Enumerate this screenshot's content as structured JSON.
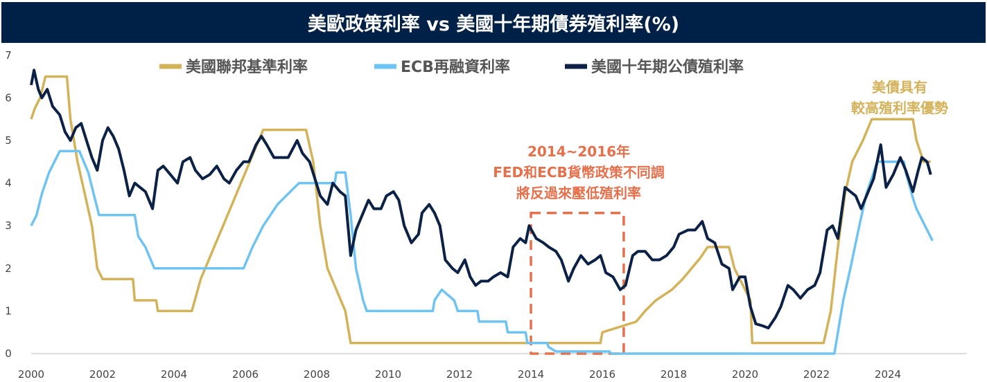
{
  "chart_data": {
    "type": "line",
    "title": "美歐政策利率 vs 美國十年期債券殖利率(%)",
    "xlabel": "",
    "ylabel": "",
    "xlim": [
      2000,
      2025.3
    ],
    "ylim": [
      0,
      7
    ],
    "yticks": [
      "0",
      "1",
      "2",
      "3",
      "4",
      "5",
      "6",
      "7"
    ],
    "xticks": [
      "2000",
      "2002",
      "2004",
      "2006",
      "2008",
      "2010",
      "2012",
      "2014",
      "2016",
      "2018",
      "2020",
      "2022",
      "2024"
    ],
    "grid": false,
    "legend_position": "top",
    "colors": {
      "fed": "#d4b25a",
      "ecb": "#6ec3f2",
      "ust": "#0b2146",
      "annotation": "#e4704c",
      "advantage": "#d4b25a",
      "title_bg": "#002147"
    },
    "series": [
      {
        "name": "美國聯邦基準利率",
        "key": "fed",
        "points": [
          [
            2000,
            5.5
          ],
          [
            2000.1,
            5.75
          ],
          [
            2000.25,
            6.0
          ],
          [
            2000.4,
            6.5
          ],
          [
            2001.0,
            6.5
          ],
          [
            2001.1,
            5.5
          ],
          [
            2001.3,
            4.5
          ],
          [
            2001.5,
            3.75
          ],
          [
            2001.7,
            3.0
          ],
          [
            2001.85,
            2.0
          ],
          [
            2002.0,
            1.75
          ],
          [
            2002.85,
            1.75
          ],
          [
            2002.9,
            1.25
          ],
          [
            2003.5,
            1.25
          ],
          [
            2003.55,
            1.0
          ],
          [
            2004.5,
            1.0
          ],
          [
            2004.75,
            1.75
          ],
          [
            2005.0,
            2.25
          ],
          [
            2005.5,
            3.25
          ],
          [
            2006.0,
            4.25
          ],
          [
            2006.5,
            5.25
          ],
          [
            2007.7,
            5.25
          ],
          [
            2007.9,
            4.5
          ],
          [
            2008.1,
            3.0
          ],
          [
            2008.3,
            2.0
          ],
          [
            2008.8,
            1.0
          ],
          [
            2008.95,
            0.25
          ],
          [
            2015.95,
            0.25
          ],
          [
            2016.0,
            0.5
          ],
          [
            2016.95,
            0.75
          ],
          [
            2017.2,
            1.0
          ],
          [
            2017.5,
            1.25
          ],
          [
            2017.95,
            1.5
          ],
          [
            2018.25,
            1.75
          ],
          [
            2018.5,
            2.0
          ],
          [
            2018.75,
            2.25
          ],
          [
            2018.95,
            2.5
          ],
          [
            2019.55,
            2.5
          ],
          [
            2019.7,
            2.0
          ],
          [
            2019.85,
            1.75
          ],
          [
            2020.15,
            1.25
          ],
          [
            2020.2,
            0.25
          ],
          [
            2022.2,
            0.25
          ],
          [
            2022.4,
            1.0
          ],
          [
            2022.6,
            2.5
          ],
          [
            2022.8,
            3.75
          ],
          [
            2023.0,
            4.5
          ],
          [
            2023.3,
            5.0
          ],
          [
            2023.55,
            5.5
          ],
          [
            2024.7,
            5.5
          ],
          [
            2024.8,
            5.0
          ],
          [
            2024.9,
            4.75
          ],
          [
            2025.0,
            4.5
          ],
          [
            2025.2,
            4.5
          ]
        ]
      },
      {
        "name": "ECB再融資利率",
        "key": "ecb",
        "points": [
          [
            2000,
            3.0
          ],
          [
            2000.15,
            3.25
          ],
          [
            2000.3,
            3.75
          ],
          [
            2000.5,
            4.25
          ],
          [
            2000.8,
            4.75
          ],
          [
            2001.35,
            4.75
          ],
          [
            2001.6,
            4.25
          ],
          [
            2001.75,
            3.75
          ],
          [
            2001.9,
            3.25
          ],
          [
            2002.9,
            3.25
          ],
          [
            2003.0,
            2.75
          ],
          [
            2003.2,
            2.5
          ],
          [
            2003.45,
            2.0
          ],
          [
            2005.95,
            2.0
          ],
          [
            2006.2,
            2.5
          ],
          [
            2006.5,
            3.0
          ],
          [
            2006.9,
            3.5
          ],
          [
            2007.2,
            3.75
          ],
          [
            2007.5,
            4.0
          ],
          [
            2008.5,
            4.0
          ],
          [
            2008.55,
            4.25
          ],
          [
            2008.8,
            4.25
          ],
          [
            2008.95,
            3.25
          ],
          [
            2009.1,
            2.0
          ],
          [
            2009.3,
            1.25
          ],
          [
            2009.4,
            1.0
          ],
          [
            2011.25,
            1.0
          ],
          [
            2011.3,
            1.25
          ],
          [
            2011.5,
            1.5
          ],
          [
            2011.85,
            1.25
          ],
          [
            2011.95,
            1.0
          ],
          [
            2012.5,
            1.0
          ],
          [
            2012.55,
            0.75
          ],
          [
            2013.3,
            0.75
          ],
          [
            2013.35,
            0.5
          ],
          [
            2013.85,
            0.5
          ],
          [
            2013.9,
            0.25
          ],
          [
            2014.45,
            0.25
          ],
          [
            2014.5,
            0.15
          ],
          [
            2014.7,
            0.05
          ],
          [
            2016.2,
            0.05
          ],
          [
            2016.25,
            0.0
          ],
          [
            2022.5,
            0.0
          ],
          [
            2022.6,
            0.5
          ],
          [
            2022.75,
            1.25
          ],
          [
            2022.95,
            2.0
          ],
          [
            2023.2,
            3.0
          ],
          [
            2023.4,
            3.75
          ],
          [
            2023.7,
            4.5
          ],
          [
            2024.45,
            4.5
          ],
          [
            2024.5,
            4.25
          ],
          [
            2024.7,
            3.65
          ],
          [
            2024.8,
            3.4
          ],
          [
            2024.95,
            3.15
          ],
          [
            2025.1,
            2.9
          ],
          [
            2025.25,
            2.65
          ]
        ]
      },
      {
        "name": "美國十年期公債殖利率",
        "key": "ust",
        "points": [
          [
            2000,
            6.3
          ],
          [
            2000.08,
            6.65
          ],
          [
            2000.2,
            6.2
          ],
          [
            2000.3,
            6.0
          ],
          [
            2000.45,
            6.2
          ],
          [
            2000.6,
            5.8
          ],
          [
            2000.8,
            5.6
          ],
          [
            2000.95,
            5.2
          ],
          [
            2001.1,
            5.0
          ],
          [
            2001.25,
            5.3
          ],
          [
            2001.4,
            5.4
          ],
          [
            2001.55,
            5.0
          ],
          [
            2001.7,
            4.6
          ],
          [
            2001.85,
            4.3
          ],
          [
            2002.0,
            5.0
          ],
          [
            2002.15,
            5.3
          ],
          [
            2002.3,
            5.1
          ],
          [
            2002.45,
            4.8
          ],
          [
            2002.6,
            4.3
          ],
          [
            2002.75,
            3.7
          ],
          [
            2002.9,
            4.0
          ],
          [
            2003.05,
            3.9
          ],
          [
            2003.2,
            3.8
          ],
          [
            2003.4,
            3.4
          ],
          [
            2003.55,
            4.3
          ],
          [
            2003.7,
            4.4
          ],
          [
            2003.9,
            4.2
          ],
          [
            2004.1,
            4.0
          ],
          [
            2004.25,
            4.5
          ],
          [
            2004.45,
            4.6
          ],
          [
            2004.6,
            4.3
          ],
          [
            2004.8,
            4.1
          ],
          [
            2005.0,
            4.2
          ],
          [
            2005.2,
            4.4
          ],
          [
            2005.4,
            4.1
          ],
          [
            2005.55,
            4.0
          ],
          [
            2005.75,
            4.3
          ],
          [
            2005.95,
            4.5
          ],
          [
            2006.1,
            4.5
          ],
          [
            2006.3,
            4.9
          ],
          [
            2006.45,
            5.1
          ],
          [
            2006.6,
            4.9
          ],
          [
            2006.8,
            4.6
          ],
          [
            2006.95,
            4.6
          ],
          [
            2007.2,
            4.6
          ],
          [
            2007.45,
            5.0
          ],
          [
            2007.6,
            4.7
          ],
          [
            2007.8,
            4.5
          ],
          [
            2007.95,
            4.1
          ],
          [
            2008.1,
            3.7
          ],
          [
            2008.3,
            3.5
          ],
          [
            2008.45,
            4.0
          ],
          [
            2008.65,
            3.8
          ],
          [
            2008.8,
            3.7
          ],
          [
            2008.95,
            2.3
          ],
          [
            2009.1,
            2.9
          ],
          [
            2009.3,
            3.3
          ],
          [
            2009.45,
            3.6
          ],
          [
            2009.6,
            3.4
          ],
          [
            2009.8,
            3.4
          ],
          [
            2009.95,
            3.7
          ],
          [
            2010.15,
            3.8
          ],
          [
            2010.3,
            3.6
          ],
          [
            2010.45,
            3.0
          ],
          [
            2010.65,
            2.6
          ],
          [
            2010.85,
            2.8
          ],
          [
            2010.95,
            3.3
          ],
          [
            2011.15,
            3.5
          ],
          [
            2011.3,
            3.3
          ],
          [
            2011.45,
            3.0
          ],
          [
            2011.6,
            2.2
          ],
          [
            2011.8,
            2.0
          ],
          [
            2011.95,
            1.9
          ],
          [
            2012.15,
            2.2
          ],
          [
            2012.3,
            1.8
          ],
          [
            2012.45,
            1.6
          ],
          [
            2012.6,
            1.7
          ],
          [
            2012.8,
            1.7
          ],
          [
            2012.95,
            1.8
          ],
          [
            2013.15,
            1.9
          ],
          [
            2013.35,
            1.8
          ],
          [
            2013.5,
            2.5
          ],
          [
            2013.7,
            2.7
          ],
          [
            2013.85,
            2.6
          ],
          [
            2013.95,
            3.0
          ],
          [
            2014.15,
            2.7
          ],
          [
            2014.35,
            2.6
          ],
          [
            2014.5,
            2.5
          ],
          [
            2014.7,
            2.4
          ],
          [
            2014.85,
            2.2
          ],
          [
            2015.05,
            1.7
          ],
          [
            2015.2,
            2.0
          ],
          [
            2015.4,
            2.3
          ],
          [
            2015.6,
            2.1
          ],
          [
            2015.8,
            2.2
          ],
          [
            2015.95,
            2.3
          ],
          [
            2016.1,
            1.9
          ],
          [
            2016.3,
            1.8
          ],
          [
            2016.5,
            1.5
          ],
          [
            2016.65,
            1.6
          ],
          [
            2016.85,
            2.3
          ],
          [
            2017.0,
            2.4
          ],
          [
            2017.2,
            2.4
          ],
          [
            2017.4,
            2.2
          ],
          [
            2017.6,
            2.2
          ],
          [
            2017.8,
            2.3
          ],
          [
            2018.0,
            2.5
          ],
          [
            2018.15,
            2.8
          ],
          [
            2018.4,
            2.9
          ],
          [
            2018.6,
            2.9
          ],
          [
            2018.8,
            3.1
          ],
          [
            2018.95,
            2.7
          ],
          [
            2019.15,
            2.6
          ],
          [
            2019.35,
            2.1
          ],
          [
            2019.55,
            2.0
          ],
          [
            2019.65,
            1.5
          ],
          [
            2019.85,
            1.8
          ],
          [
            2020.0,
            1.8
          ],
          [
            2020.15,
            1.1
          ],
          [
            2020.3,
            0.7
          ],
          [
            2020.5,
            0.65
          ],
          [
            2020.65,
            0.6
          ],
          [
            2020.85,
            0.85
          ],
          [
            2021.0,
            1.1
          ],
          [
            2021.2,
            1.6
          ],
          [
            2021.35,
            1.5
          ],
          [
            2021.55,
            1.3
          ],
          [
            2021.75,
            1.5
          ],
          [
            2021.95,
            1.6
          ],
          [
            2022.1,
            1.9
          ],
          [
            2022.3,
            2.9
          ],
          [
            2022.45,
            3.0
          ],
          [
            2022.6,
            2.7
          ],
          [
            2022.8,
            3.9
          ],
          [
            2022.95,
            3.8
          ],
          [
            2023.1,
            3.7
          ],
          [
            2023.25,
            3.4
          ],
          [
            2023.45,
            3.8
          ],
          [
            2023.6,
            4.1
          ],
          [
            2023.8,
            4.9
          ],
          [
            2023.95,
            3.9
          ],
          [
            2024.15,
            4.2
          ],
          [
            2024.35,
            4.6
          ],
          [
            2024.5,
            4.3
          ],
          [
            2024.7,
            3.8
          ],
          [
            2024.85,
            4.3
          ],
          [
            2024.95,
            4.6
          ],
          [
            2025.1,
            4.5
          ],
          [
            2025.2,
            4.2
          ]
        ]
      }
    ],
    "legend": [
      "美國聯邦基準利率",
      "ECB再融資利率",
      "美國十年期公債殖利率"
    ],
    "annotations": {
      "divergence": [
        "2014~2016年",
        "FED和ECB貨幣政策不同調",
        "將反過來壓低殖利率"
      ],
      "divergence_box": {
        "x_from": 2014,
        "x_to": 2016.6,
        "y_from": 0,
        "y_to": 3.3
      },
      "advantage": [
        "美債具有",
        "較高殖利率優勢"
      ]
    }
  }
}
